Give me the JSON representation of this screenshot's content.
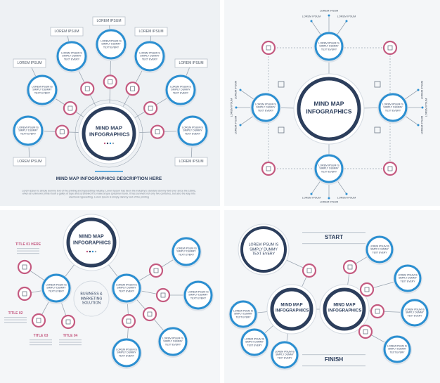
{
  "panels": [
    {
      "title": "MIND MAP INFOGRAPHICS",
      "nodes": [
        "LOREM IPSUM IS SIMPLY DUMMY TEXT EVERY",
        "LOREM IPSUM IS SIMPLY DUMMY TEXT EVERY",
        "LOREM IPSUM IS SIMPLY DUMMY TEXT EVERY",
        "LOREM IPSUM IS SIMPLY DUMMY TEXT EVERY",
        "LOREM IPSUM IS SIMPLY DUMMY TEXT EVERY",
        "LOREM IPSUM IS SIMPLY DUMMY TEXT EVERY",
        "LOREM IPSUM IS SIMPLY DUMMY TEXT EVERY"
      ],
      "callouts": [
        "LOREM IPSUM",
        "LOREM IPSUM",
        "LOREM IPSUM",
        "LOREM IPSUM",
        "LOREM IPSUM",
        "LOREM IPSUM",
        "LOREM IPSUM"
      ],
      "heading": "MIND MAP INFOGRAPHICS DESCRIPTION HERE",
      "description": "Lorem Ipsum is simply dummy text of the printing and typesetting industry. Lorem Ipsum has been the industry's standard dummy text ever since the 1500s, when an unknown printer took a galley of type and scrambled it to make a type specimen book. It has survived not only five centuries, but also the leap into electronic typesetting. Lorem Ipsum is simply dummy text of the printing"
    },
    {
      "title": "MIND MAP INFOGRAPHICS",
      "nodes": [
        "LOREM IPSUM IS SIMPLY DUMMY TEXT EVERY",
        "LOREM IPSUM IS SIMPLY DUMMY TEXT EVERY",
        "LOREM IPSUM IS SIMPLY DUMMY TEXT EVERY",
        "LOREM IPSUM IS SIMPLY DUMMY TEXT EVERY"
      ],
      "labels": [
        "LOREM IPSUM",
        "LOREM IPSUM",
        "LOREM IPSUM",
        "LOREM IPSUM",
        "LOREM IPSUM",
        "LOREM IPSUM",
        "LOREM IPSUM",
        "LOREM IPSUM",
        "LOREM IPSUM",
        "LOREM IPSUM",
        "LOREM IPSUM",
        "LOREM IPSUM"
      ]
    },
    {
      "title": "MIND MAP INFOGRAPHICS",
      "nodes": [
        "LOREM IPSUM IS SIMPLY DUMMY TEXT EVERY",
        "LOREM IPSUM IS SIMPLY DUMMY TEXT EVERY",
        "LOREM IPSUM IS SIMPLY DUMMY TEXT EVERY",
        "LOREM IPSUM IS SIMPLY DUMMY TEXT EVERY",
        "LOREM IPSUM IS SIMPLY DUMMY TEXT EVERY",
        "LOREM IPSUM IS SIMPLY DUMMY TEXT EVERY"
      ],
      "titles": [
        "TITLE 01 HERE",
        "TITLE 02",
        "TITLE 03",
        "TITLE 04"
      ],
      "subtitle": "BUSINESS & MARKETING SOLUTION"
    },
    {
      "start": "START",
      "finish": "FINISH",
      "lead": "LOREM IPSUM IS SIMPLY DUMMY TEXT EVERY",
      "centers": [
        "MIND MAP INFOGRAPHICS",
        "MIND MAP INFOGRAPHICS"
      ],
      "nodes": [
        "LOREM IPSUM IS SIMPLY DUMMY TEXT EVERY",
        "LOREM IPSUM IS SIMPLY DUMMY TEXT EVERY",
        "LOREM IPSUM IS SIMPLY DUMMY TEXT EVERY",
        "LOREM IPSUM IS SIMPLY DUMMY TEXT EVERY",
        "LOREM IPSUM IS SIMPLY DUMMY TEXT EVERY",
        "LOREM IPSUM IS SIMPLY DUMMY TEXT EVERY",
        "LOREM IPSUM IS SIMPLY DUMMY TEXT EVERY"
      ]
    }
  ]
}
